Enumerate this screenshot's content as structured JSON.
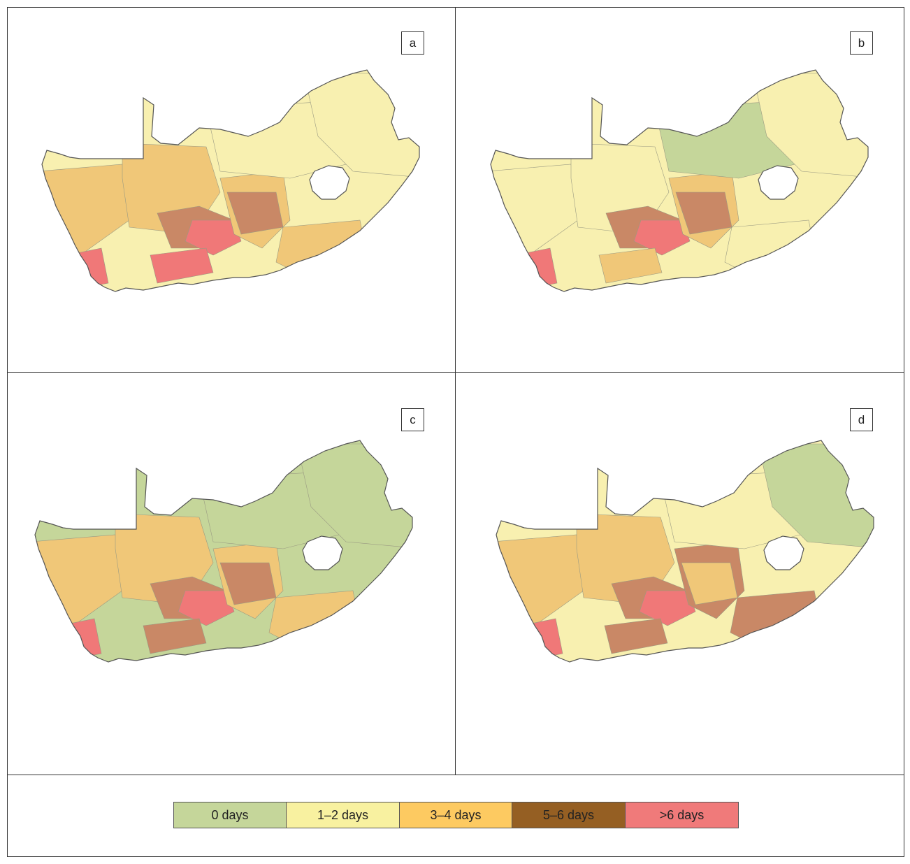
{
  "colors": {
    "0 days": "#c5d69a",
    "1–2 days": "#f8f0b0",
    "3–4 days": "#f0c778",
    "5–6 days": "#c98866",
    ">6 days": "#f07878"
  },
  "legend": {
    "items": [
      {
        "label": "0 days",
        "color": "#c5d69a"
      },
      {
        "label": "1–2 days",
        "color": "#f8f1a0"
      },
      {
        "label": "3–4 days",
        "color": "#fdca61"
      },
      {
        "label": "5–6 days",
        "color": "#955f23"
      },
      {
        "label": ">6 days",
        "color": "#f07a7a"
      }
    ]
  },
  "panels": [
    {
      "label": "a",
      "regions": [
        "1–2 days",
        "3–4 days",
        "3–4 days",
        "5–6 days",
        ">6 days",
        ">6 days",
        "3–4 days",
        "3–4 days",
        "1–2 days",
        ">6 days",
        "5–6 days",
        "1–2 days"
      ]
    },
    {
      "label": "b",
      "regions": [
        "1–2 days",
        "1–2 days",
        "1–2 days",
        "5–6 days",
        ">6 days",
        "3–4 days",
        "3–4 days",
        "1–2 days",
        "0 days",
        ">6 days",
        "5–6 days",
        "1–2 days"
      ]
    },
    {
      "label": "c",
      "regions": [
        "0 days",
        "3–4 days",
        "3–4 days",
        "5–6 days",
        ">6 days",
        "5–6 days",
        "3–4 days",
        "3–4 days",
        "0 days",
        ">6 days",
        "5–6 days",
        "0 days"
      ]
    },
    {
      "label": "d",
      "regions": [
        "1–2 days",
        "3–4 days",
        "3–4 days",
        "5–6 days",
        ">6 days",
        "5–6 days",
        "5–6 days",
        "5–6 days",
        "1–2 days",
        ">6 days",
        "3–4 days",
        "0 days"
      ]
    }
  ]
}
